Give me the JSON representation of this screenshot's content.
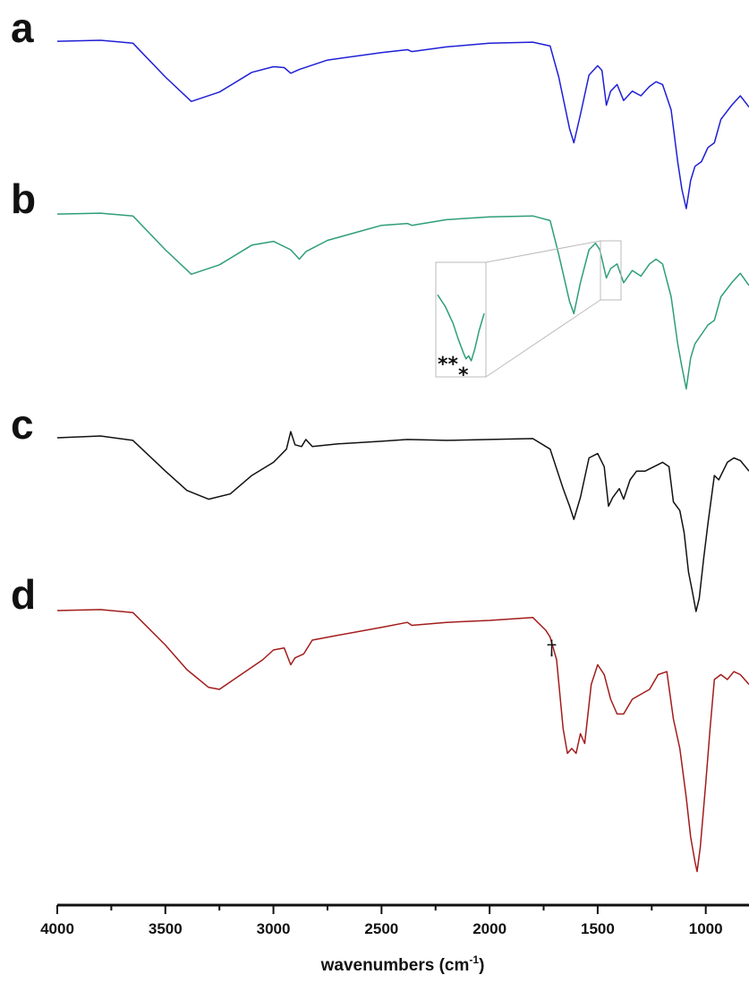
{
  "chart_data": {
    "type": "line",
    "title": "",
    "xlabel": "wavenumbers (cm",
    "xlabel_sup": "-1",
    "xlabel_close": ")",
    "xlim": [
      4000,
      800
    ],
    "x_reversed": true,
    "x_ticks": [
      "4000",
      "3500",
      "3000",
      "2500",
      "2000",
      "1500",
      "1000"
    ],
    "y_axis_shown": false,
    "grid": false,
    "legend": "none",
    "panels": [
      {
        "label": "a",
        "color": "#1f1fd6",
        "points": [
          [
            4000,
            0.02
          ],
          [
            3800,
            0.01
          ],
          [
            3650,
            0.04
          ],
          [
            3500,
            0.4
          ],
          [
            3380,
            0.66
          ],
          [
            3250,
            0.56
          ],
          [
            3100,
            0.35
          ],
          [
            3000,
            0.29
          ],
          [
            2950,
            0.3
          ],
          [
            2920,
            0.36
          ],
          [
            2880,
            0.32
          ],
          [
            2750,
            0.22
          ],
          [
            2500,
            0.14
          ],
          [
            2380,
            0.11
          ],
          [
            2360,
            0.13
          ],
          [
            2200,
            0.08
          ],
          [
            2000,
            0.04
          ],
          [
            1800,
            0.03
          ],
          [
            1720,
            0.07
          ],
          [
            1680,
            0.4
          ],
          [
            1630,
            0.95
          ],
          [
            1610,
            1.1
          ],
          [
            1580,
            0.8
          ],
          [
            1540,
            0.38
          ],
          [
            1500,
            0.28
          ],
          [
            1480,
            0.33
          ],
          [
            1460,
            0.7
          ],
          [
            1440,
            0.55
          ],
          [
            1410,
            0.48
          ],
          [
            1380,
            0.65
          ],
          [
            1340,
            0.55
          ],
          [
            1300,
            0.6
          ],
          [
            1260,
            0.5
          ],
          [
            1230,
            0.45
          ],
          [
            1200,
            0.48
          ],
          [
            1160,
            0.75
          ],
          [
            1130,
            1.3
          ],
          [
            1110,
            1.6
          ],
          [
            1090,
            1.8
          ],
          [
            1070,
            1.5
          ],
          [
            1050,
            1.35
          ],
          [
            1020,
            1.3
          ],
          [
            990,
            1.15
          ],
          [
            960,
            1.1
          ],
          [
            930,
            0.85
          ],
          [
            880,
            0.7
          ],
          [
            840,
            0.6
          ],
          [
            800,
            0.72
          ]
        ]
      },
      {
        "label": "b",
        "color": "#2e9e78",
        "points": [
          [
            4000,
            0.02
          ],
          [
            3800,
            0.01
          ],
          [
            3650,
            0.04
          ],
          [
            3500,
            0.4
          ],
          [
            3380,
            0.66
          ],
          [
            3250,
            0.56
          ],
          [
            3100,
            0.35
          ],
          [
            3000,
            0.31
          ],
          [
            2920,
            0.4
          ],
          [
            2880,
            0.5
          ],
          [
            2850,
            0.42
          ],
          [
            2750,
            0.3
          ],
          [
            2500,
            0.14
          ],
          [
            2380,
            0.12
          ],
          [
            2360,
            0.14
          ],
          [
            2200,
            0.08
          ],
          [
            2000,
            0.05
          ],
          [
            1800,
            0.04
          ],
          [
            1720,
            0.09
          ],
          [
            1680,
            0.45
          ],
          [
            1630,
            0.95
          ],
          [
            1610,
            1.08
          ],
          [
            1580,
            0.75
          ],
          [
            1540,
            0.4
          ],
          [
            1510,
            0.33
          ],
          [
            1490,
            0.4
          ],
          [
            1460,
            0.7
          ],
          [
            1440,
            0.6
          ],
          [
            1410,
            0.55
          ],
          [
            1380,
            0.75
          ],
          [
            1340,
            0.62
          ],
          [
            1300,
            0.68
          ],
          [
            1260,
            0.55
          ],
          [
            1230,
            0.5
          ],
          [
            1200,
            0.55
          ],
          [
            1160,
            0.9
          ],
          [
            1130,
            1.4
          ],
          [
            1110,
            1.65
          ],
          [
            1090,
            1.88
          ],
          [
            1070,
            1.55
          ],
          [
            1050,
            1.4
          ],
          [
            1020,
            1.3
          ],
          [
            990,
            1.2
          ],
          [
            960,
            1.15
          ],
          [
            930,
            0.9
          ],
          [
            880,
            0.75
          ],
          [
            840,
            0.65
          ],
          [
            800,
            0.78
          ]
        ],
        "inset_points": [
          [
            1520,
            0.33
          ],
          [
            1505,
            0.45
          ],
          [
            1490,
            0.62
          ],
          [
            1480,
            0.78
          ],
          [
            1470,
            0.92
          ],
          [
            1465,
            0.98
          ],
          [
            1460,
            0.95
          ],
          [
            1455,
            1.0
          ],
          [
            1448,
            0.88
          ],
          [
            1440,
            0.7
          ],
          [
            1430,
            0.52
          ]
        ],
        "annotations": [
          "**",
          "*"
        ]
      },
      {
        "label": "c",
        "color": "#111111",
        "points": [
          [
            4000,
            0.02
          ],
          [
            3800,
            0.0
          ],
          [
            3650,
            0.05
          ],
          [
            3500,
            0.4
          ],
          [
            3400,
            0.62
          ],
          [
            3300,
            0.72
          ],
          [
            3200,
            0.66
          ],
          [
            3100,
            0.45
          ],
          [
            3000,
            0.3
          ],
          [
            2940,
            0.15
          ],
          [
            2920,
            -0.05
          ],
          [
            2900,
            0.1
          ],
          [
            2870,
            0.12
          ],
          [
            2850,
            0.04
          ],
          [
            2820,
            0.12
          ],
          [
            2700,
            0.09
          ],
          [
            2500,
            0.06
          ],
          [
            2380,
            0.04
          ],
          [
            2200,
            0.05
          ],
          [
            2000,
            0.04
          ],
          [
            1800,
            0.03
          ],
          [
            1720,
            0.15
          ],
          [
            1660,
            0.6
          ],
          [
            1630,
            0.8
          ],
          [
            1610,
            0.95
          ],
          [
            1580,
            0.7
          ],
          [
            1540,
            0.25
          ],
          [
            1500,
            0.2
          ],
          [
            1470,
            0.35
          ],
          [
            1450,
            0.8
          ],
          [
            1430,
            0.7
          ],
          [
            1400,
            0.6
          ],
          [
            1380,
            0.72
          ],
          [
            1350,
            0.5
          ],
          [
            1320,
            0.4
          ],
          [
            1280,
            0.4
          ],
          [
            1240,
            0.35
          ],
          [
            1200,
            0.3
          ],
          [
            1170,
            0.35
          ],
          [
            1150,
            0.75
          ],
          [
            1120,
            0.85
          ],
          [
            1100,
            1.1
          ],
          [
            1080,
            1.55
          ],
          [
            1060,
            1.8
          ],
          [
            1045,
            2.0
          ],
          [
            1030,
            1.85
          ],
          [
            1010,
            1.4
          ],
          [
            990,
            1.0
          ],
          [
            960,
            0.45
          ],
          [
            940,
            0.5
          ],
          [
            920,
            0.4
          ],
          [
            900,
            0.3
          ],
          [
            870,
            0.25
          ],
          [
            840,
            0.28
          ],
          [
            800,
            0.4
          ]
        ]
      },
      {
        "label": "d",
        "color": "#a31c1c",
        "points": [
          [
            4000,
            0.0
          ],
          [
            3800,
            -0.01
          ],
          [
            3650,
            0.02
          ],
          [
            3500,
            0.35
          ],
          [
            3400,
            0.6
          ],
          [
            3300,
            0.78
          ],
          [
            3250,
            0.8
          ],
          [
            3150,
            0.65
          ],
          [
            3050,
            0.5
          ],
          [
            3000,
            0.4
          ],
          [
            2950,
            0.38
          ],
          [
            2920,
            0.55
          ],
          [
            2900,
            0.48
          ],
          [
            2860,
            0.44
          ],
          [
            2820,
            0.3
          ],
          [
            2700,
            0.25
          ],
          [
            2500,
            0.17
          ],
          [
            2380,
            0.12
          ],
          [
            2360,
            0.15
          ],
          [
            2200,
            0.12
          ],
          [
            2000,
            0.1
          ],
          [
            1800,
            0.07
          ],
          [
            1740,
            0.2
          ],
          [
            1720,
            0.27
          ],
          [
            1690,
            0.5
          ],
          [
            1660,
            1.2
          ],
          [
            1640,
            1.45
          ],
          [
            1620,
            1.4
          ],
          [
            1600,
            1.45
          ],
          [
            1580,
            1.25
          ],
          [
            1560,
            1.35
          ],
          [
            1530,
            0.75
          ],
          [
            1500,
            0.55
          ],
          [
            1470,
            0.65
          ],
          [
            1440,
            0.9
          ],
          [
            1410,
            1.05
          ],
          [
            1380,
            1.05
          ],
          [
            1340,
            0.9
          ],
          [
            1300,
            0.85
          ],
          [
            1260,
            0.8
          ],
          [
            1220,
            0.65
          ],
          [
            1180,
            0.62
          ],
          [
            1150,
            1.1
          ],
          [
            1120,
            1.4
          ],
          [
            1090,
            1.9
          ],
          [
            1070,
            2.3
          ],
          [
            1050,
            2.55
          ],
          [
            1040,
            2.65
          ],
          [
            1025,
            2.4
          ],
          [
            1000,
            1.75
          ],
          [
            980,
            1.2
          ],
          [
            960,
            0.7
          ],
          [
            930,
            0.65
          ],
          [
            900,
            0.7
          ],
          [
            870,
            0.62
          ],
          [
            840,
            0.65
          ],
          [
            800,
            0.75
          ]
        ],
        "annotations": [
          "†"
        ]
      }
    ]
  }
}
